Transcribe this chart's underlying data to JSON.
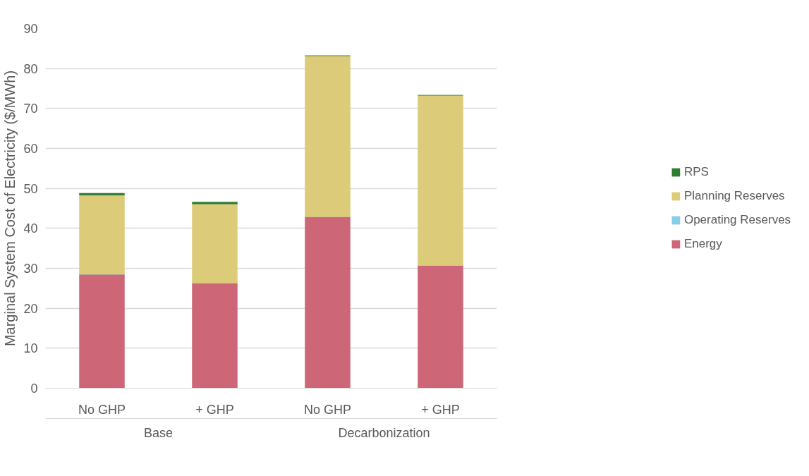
{
  "chart_data": {
    "type": "bar",
    "stacked": true,
    "ylabel": "Marginal System Cost of Electricity ($/MWh)",
    "categories": [
      "No GHP",
      "+ GHP",
      "No GHP",
      "+ GHP"
    ],
    "annotations": [
      "Base",
      "Decarbonization"
    ],
    "series": [
      {
        "name": "Energy",
        "color": "#cd6677",
        "values": [
          28.5,
          26.3,
          42.9,
          30.7
        ]
      },
      {
        "name": "Operating Reserves",
        "color": "#87ceeb",
        "values": [
          0,
          0,
          0,
          0
        ]
      },
      {
        "name": "Planning Reserves",
        "color": "#dccb79",
        "values": [
          19.8,
          19.8,
          40.3,
          42.6
        ]
      },
      {
        "name": "RPS",
        "color": "#2e7d32",
        "values": [
          0.5,
          0.5,
          0,
          0
        ]
      }
    ],
    "ylim": [
      0,
      90
    ],
    "yticks": [
      0,
      10,
      20,
      30,
      40,
      50,
      60,
      70,
      80,
      90
    ],
    "grid": "y",
    "legend": "right"
  }
}
